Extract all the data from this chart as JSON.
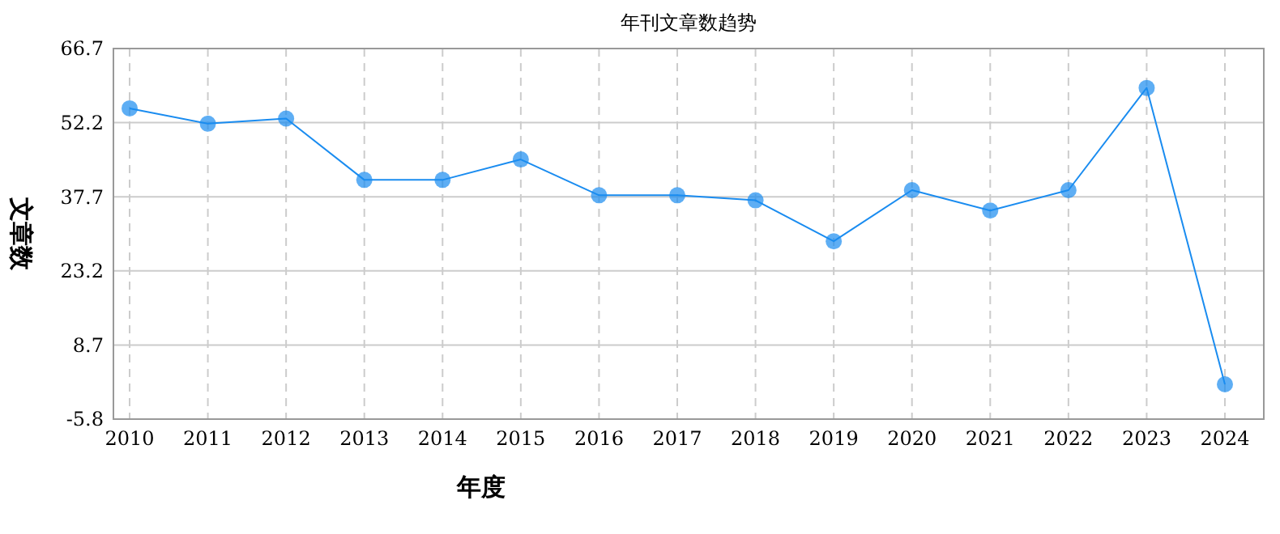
{
  "chart_data": {
    "type": "line",
    "title": "年刊文章数趋势",
    "xlabel": "年度",
    "ylabel": "文章数",
    "categories": [
      "2010",
      "2011",
      "2012",
      "2013",
      "2014",
      "2015",
      "2016",
      "2017",
      "2018",
      "2019",
      "2020",
      "2021",
      "2022",
      "2023",
      "2024"
    ],
    "series": [
      {
        "color": "#1a8cf0",
        "values": [
          55,
          52,
          53,
          41,
          41,
          45,
          38,
          38,
          37,
          29,
          39,
          35,
          39,
          59,
          1
        ]
      }
    ],
    "ylim": [
      -5.8,
      66.7
    ],
    "yticks": [
      -5.8,
      8.7,
      23.2,
      37.7,
      52.2,
      66.7
    ],
    "grid": true,
    "marker": "circle",
    "line_style": "solid"
  }
}
